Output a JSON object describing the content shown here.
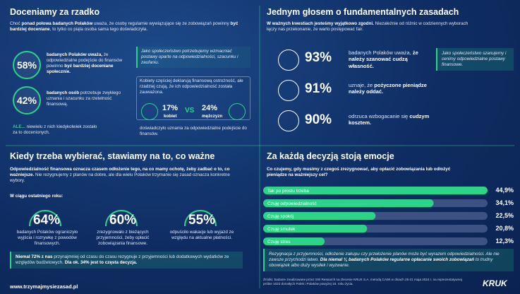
{
  "q1": {
    "title": "Doceniamy za rzadko",
    "intro": [
      "Choć ",
      {
        "b": "ponad połowa badanych Polaków"
      },
      " uważa, że osoby regularnie wywiązujące się ze zobowiązań powinny ",
      {
        "b": "być bardziej doceniane"
      },
      ", to tylko co piąta osoba sama tego doświadczyła."
    ],
    "stats": [
      {
        "value": "58%",
        "text": [
          {
            "b": "badanych Polaków uważa,"
          },
          " że odpowiedzialne podejście do finansów powinno ",
          {
            "b": "być bardziej doceniane społecznie."
          }
        ]
      },
      {
        "value": "42%",
        "text": [
          {
            "b": "badanych osób"
          },
          " potrzebuje zwykłego uznania i szacunku za rzetelność finansową."
        ]
      }
    ],
    "but": [
      {
        "b": "ALE..."
      },
      " niewielu z nich kiedykolwiek zostało za to docenionych."
    ],
    "quote": "Jako społeczeństwo potrzebujemy wzmacniać postawy oparte na odpowiedzialności, szacunku i zaufaniu.",
    "gender": {
      "intro": "Kobiety częściej deklarują finansową ostrożność, ale rzadziej czują, że ich odpowiedzialność została zauważona.",
      "women_value": "17%",
      "women_label": "kobiet",
      "vs": "VS",
      "men_value": "24%",
      "men_label": "mężczyzn",
      "outro": "doświadczyło uznania za odpowiedzialne podejście do finansów."
    }
  },
  "q2": {
    "title": "Jednym głosem o fundamentalnych zasadach",
    "intro": [
      {
        "b": "W ważnych kwestiach jesteśmy wyjątkowo zgodni."
      },
      " Niezależnie od różnic w codziennych wyborach łączy nas przekonanie, że warto postępować fair."
    ],
    "stats": [
      {
        "value": "93%",
        "text": [
          "badanych Polaków uważa, ",
          {
            "b": "że należy szanować cudzą własność."
          }
        ]
      },
      {
        "value": "91%",
        "text": [
          "uznaje, że ",
          {
            "b": "pożyczone pieniądze należy oddać."
          }
        ]
      },
      {
        "value": "90%",
        "text": [
          "odrzuca wzbogacanie się ",
          {
            "b": "cudzym kosztem."
          }
        ]
      }
    ],
    "quote": "Jako społeczeństwo szanujemy i cenimy odpowiedzialne postawy finansowe."
  },
  "q3": {
    "title": "Kiedy trzeba wybierać, stawiamy na to, co ważne",
    "intro": [
      {
        "b": "Odpowiedzialność finansowa oznacza czasem odłożenie tego, na co mamy ochotę, żeby zadbać o to, co ważniejsze."
      },
      " Nie rezygnujemy z planów na dobre, ale dla wielu Polaków trzymanie się zasad oznacza konkretne wybory."
    ],
    "period": "W ciągu ostatniego roku:",
    "stats": [
      {
        "value": "64%",
        "text": "badanych Polaków ograniczyło wyjścia i rozrywkę z powodów finansowych."
      },
      {
        "value": "60%",
        "text": "zrezygnowało z bieżących przyjemności, żeby opłacić zobowiązania finansowe."
      },
      {
        "value": "55%",
        "text": "odpuściło wakacje lub wyjazd ze względu na aktualne płatności."
      }
    ],
    "box": [
      {
        "b": "Niemal 72% z nas"
      },
      " przynajmniej od czasu do czasu rezygnuje z przyjemności lub dodatkowych wydatków ze względów budżetowych. ",
      {
        "b": "Dla ok. 34% jest to częsta decyzja."
      }
    ],
    "footer": "www.trzymajmysiezasad.pl"
  },
  "q4": {
    "title": "Za każdą decyzją stoją emocje",
    "question": "Co czujemy, gdy musimy z czegoś zrezygnować, aby opłacić zobowiązania lub odłożyć pieniądze na ważniejszy cel?",
    "chart": {
      "type": "bar",
      "orientation": "horizontal",
      "color": "#2ed38a",
      "categories": [
        "Tak po prostu trzeba",
        "Czuję odpowiedzialność",
        "Czuję spokój",
        "Czuję smutek",
        "Czuję stres"
      ],
      "values": [
        44.9,
        34.1,
        22.5,
        20.8,
        12.3
      ],
      "value_labels": [
        "44,9%",
        "34,1%",
        "22,5%",
        "20,8%",
        "12,3%"
      ]
    },
    "box": [
      "Rezygnacja z przyjemności, odłożenie zakupu czy przełożenie planów może być wyrazem odpowiedzialności. Ale nie zawsze przychodzi łatwo. ",
      {
        "b": "Dla niemal ¼ badanych Polaków regularne opłacanie swoich zobowiązań"
      },
      " to trudny obowiązek albo duży wysiłek i wyzwanie."
    ],
    "source": "Źródło: badanie zrealizowane przez SW Research na zlecenie KRUK S.A. metodą CAWI w dniach 25-31 maja 2024 r. na reprezentatywnej próbie 1022 dorosłych Polek i Polaków powyżej 18. roku życia.",
    "logo": "KRUK"
  }
}
